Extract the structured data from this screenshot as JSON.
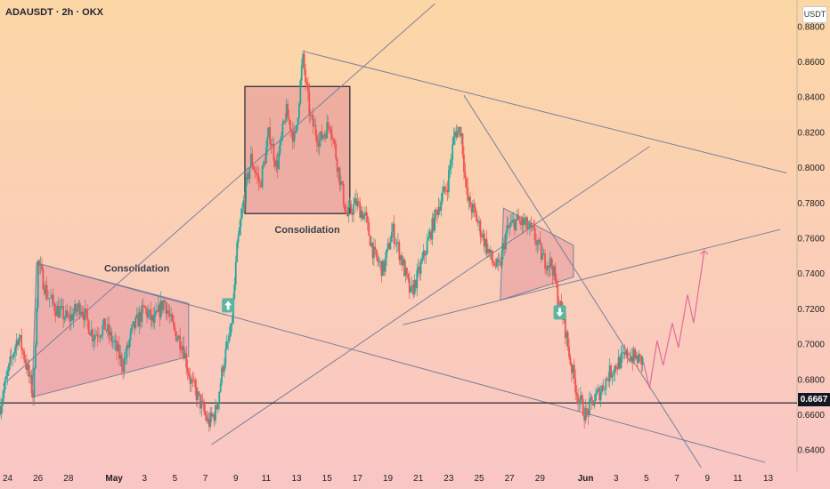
{
  "header": {
    "symbol": "ADAUSDT · 2h · OKX",
    "currency": "USDT"
  },
  "colors": {
    "bullish": "#26a69a",
    "bearish": "#ef5350",
    "trendline": "#7b7f9a",
    "zone_fill": "#d36a8a",
    "zone_stroke": "#1f2430",
    "projection": "#e46a9b",
    "price_line": "#131722",
    "badge_up": "#5bb59f",
    "badge_down": "#5bb59f"
  },
  "chart_data": {
    "type": "candlestick",
    "y_range": [
      0.628,
      0.895
    ],
    "y_ticks": [
      "0.8800",
      "0.8600",
      "0.8400",
      "0.8200",
      "0.8000",
      "0.7800",
      "0.7600",
      "0.7400",
      "0.7200",
      "0.7000",
      "0.6800",
      "0.6600",
      "0.6400"
    ],
    "y_tick_values": [
      0.88,
      0.86,
      0.84,
      0.82,
      0.8,
      0.78,
      0.76,
      0.74,
      0.72,
      0.7,
      0.68,
      0.66,
      0.64
    ],
    "current_price": {
      "label": "0.6667",
      "value": 0.6667
    },
    "x_range": [
      -0.5,
      51.9
    ],
    "x_ticks": [
      "24",
      "26",
      "28",
      "May",
      "3",
      "5",
      "7",
      "9",
      "11",
      "13",
      "15",
      "17",
      "19",
      "21",
      "23",
      "25",
      "27",
      "29",
      "Jun",
      "3",
      "5",
      "7",
      "9",
      "11",
      "13"
    ],
    "x_tick_days": [
      0,
      2,
      4,
      7,
      9,
      11,
      13,
      15,
      17,
      19,
      21,
      23,
      25,
      27,
      29,
      31,
      33,
      35,
      38,
      40,
      42,
      44,
      46,
      48,
      50
    ],
    "x_tick_bold": [
      false,
      false,
      false,
      true,
      false,
      false,
      false,
      false,
      false,
      false,
      false,
      false,
      false,
      false,
      false,
      false,
      false,
      false,
      true,
      false,
      false,
      false,
      false,
      false,
      false
    ],
    "price_path": [
      [
        -0.5,
        0.665
      ],
      [
        0.2,
        0.69
      ],
      [
        0.7,
        0.705
      ],
      [
        1.2,
        0.69
      ],
      [
        1.7,
        0.67
      ],
      [
        2.0,
        0.746
      ],
      [
        2.6,
        0.728
      ],
      [
        3.2,
        0.72
      ],
      [
        4.0,
        0.714
      ],
      [
        4.8,
        0.722
      ],
      [
        5.6,
        0.705
      ],
      [
        6.4,
        0.71
      ],
      [
        7.0,
        0.7
      ],
      [
        7.6,
        0.688
      ],
      [
        8.2,
        0.708
      ],
      [
        9.0,
        0.72
      ],
      [
        9.6,
        0.712
      ],
      [
        10.3,
        0.725
      ],
      [
        10.9,
        0.708
      ],
      [
        11.5,
        0.7
      ],
      [
        12.0,
        0.68
      ],
      [
        12.6,
        0.668
      ],
      [
        13.2,
        0.655
      ],
      [
        13.7,
        0.662
      ],
      [
        14.2,
        0.69
      ],
      [
        14.7,
        0.708
      ],
      [
        15.1,
        0.755
      ],
      [
        15.5,
        0.78
      ],
      [
        16.0,
        0.805
      ],
      [
        16.6,
        0.79
      ],
      [
        17.2,
        0.82
      ],
      [
        17.7,
        0.8
      ],
      [
        18.3,
        0.832
      ],
      [
        18.9,
        0.815
      ],
      [
        19.4,
        0.862
      ],
      [
        19.9,
        0.828
      ],
      [
        20.5,
        0.815
      ],
      [
        21.2,
        0.826
      ],
      [
        21.8,
        0.796
      ],
      [
        22.3,
        0.772
      ],
      [
        22.9,
        0.78
      ],
      [
        23.5,
        0.772
      ],
      [
        24.1,
        0.75
      ],
      [
        24.7,
        0.742
      ],
      [
        25.3,
        0.765
      ],
      [
        25.9,
        0.748
      ],
      [
        26.5,
        0.728
      ],
      [
        27.1,
        0.742
      ],
      [
        27.7,
        0.76
      ],
      [
        28.3,
        0.778
      ],
      [
        28.9,
        0.79
      ],
      [
        29.4,
        0.82
      ],
      [
        29.8,
        0.822
      ],
      [
        30.2,
        0.782
      ],
      [
        30.7,
        0.774
      ],
      [
        31.2,
        0.762
      ],
      [
        31.8,
        0.748
      ],
      [
        32.3,
        0.742
      ],
      [
        32.8,
        0.764
      ],
      [
        33.4,
        0.77
      ],
      [
        34.0,
        0.768
      ],
      [
        34.6,
        0.762
      ],
      [
        35.2,
        0.748
      ],
      [
        35.8,
        0.745
      ],
      [
        36.2,
        0.725
      ],
      [
        36.6,
        0.712
      ],
      [
        37.0,
        0.69
      ],
      [
        37.5,
        0.67
      ],
      [
        38.0,
        0.66
      ],
      [
        38.5,
        0.668
      ],
      [
        39.0,
        0.674
      ],
      [
        39.6,
        0.684
      ],
      [
        40.2,
        0.69
      ],
      [
        40.8,
        0.694
      ],
      [
        41.3,
        0.692
      ],
      [
        41.8,
        0.69
      ]
    ],
    "projection_path": [
      [
        41.8,
        0.69
      ],
      [
        42.2,
        0.675
      ],
      [
        42.7,
        0.702
      ],
      [
        43.1,
        0.688
      ],
      [
        43.7,
        0.712
      ],
      [
        44.1,
        0.698
      ],
      [
        44.7,
        0.728
      ],
      [
        45.1,
        0.712
      ],
      [
        45.8,
        0.753
      ]
    ],
    "trendlines": [
      {
        "name": "upper-channel-line",
        "p1": [
          -0.3,
          0.677
        ],
        "p2": [
          28.1,
          0.893
        ]
      },
      {
        "name": "descending-resistance-line",
        "p1": [
          19.4,
          0.866
        ],
        "p2": [
          51.2,
          0.797
        ]
      },
      {
        "name": "long-descending-support-line",
        "p1": [
          1.9,
          0.746
        ],
        "p2": [
          49.8,
          0.633
        ]
      },
      {
        "name": "diagonal-support-line",
        "p1": [
          13.4,
          0.643
        ],
        "p2": [
          42.2,
          0.812
        ]
      },
      {
        "name": "lower-rising-line",
        "p1": [
          26.0,
          0.711
        ],
        "p2": [
          50.8,
          0.765
        ]
      },
      {
        "name": "steep-descending-line",
        "p1": [
          30.0,
          0.841
        ],
        "p2": [
          45.6,
          0.63
        ]
      }
    ],
    "zones": [
      {
        "name": "consolidation-zone-1",
        "points": [
          [
            1.9,
            0.746
          ],
          [
            11.9,
            0.723
          ],
          [
            11.9,
            0.693
          ],
          [
            1.6,
            0.67
          ]
        ],
        "label": "Consolidation",
        "label_at": [
          8.5,
          0.741
        ]
      },
      {
        "name": "consolidation-zone-2",
        "rect": [
          15.6,
          0.846,
          22.5,
          0.774
        ],
        "label": "Consolidation",
        "label_at": [
          19.7,
          0.763
        ]
      },
      {
        "name": "bear-flag-zone",
        "points": [
          [
            32.6,
            0.777
          ],
          [
            37.2,
            0.756
          ],
          [
            37.2,
            0.738
          ],
          [
            32.4,
            0.725
          ]
        ]
      }
    ],
    "signals": [
      {
        "name": "buy-arrow-badge",
        "at": [
          14.5,
          0.722
        ],
        "direction": "up"
      },
      {
        "name": "sell-arrow-badge",
        "at": [
          36.3,
          0.718
        ],
        "direction": "down"
      }
    ]
  }
}
